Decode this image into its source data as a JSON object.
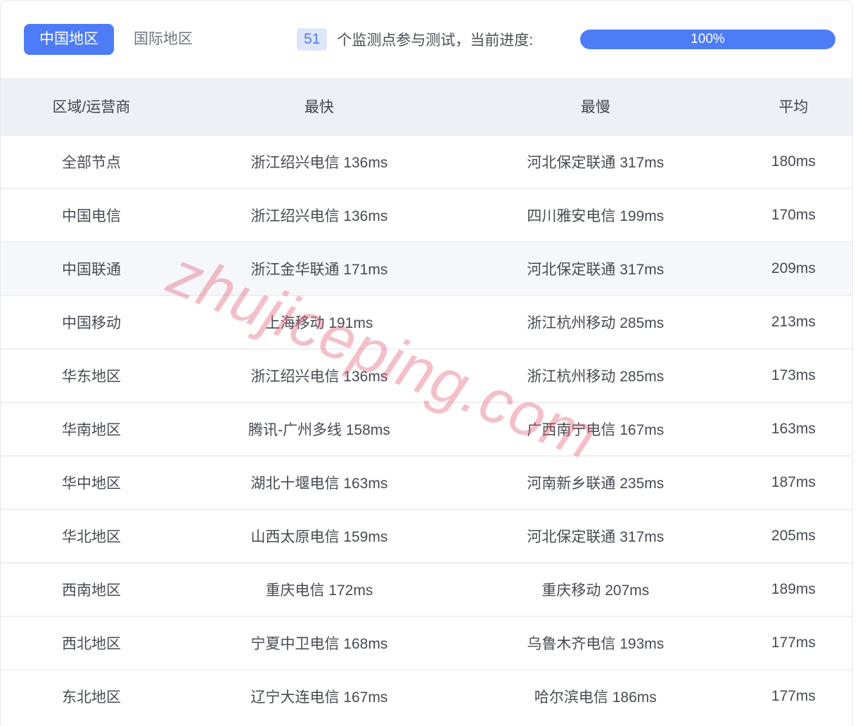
{
  "tabs": [
    {
      "label": "中国地区",
      "active": true
    },
    {
      "label": "国际地区",
      "active": false
    }
  ],
  "status": {
    "count": "51",
    "label": "个监测点参与测试，当前进度:",
    "progress": "100%"
  },
  "watermark": "zhujiceping.com",
  "table": {
    "headers": [
      "区域/运营商",
      "最快",
      "最慢",
      "平均"
    ],
    "rows": [
      {
        "region": "全部节点",
        "fastest": "浙江绍兴电信 136ms",
        "slowest": "河北保定联通 317ms",
        "avg": "180ms",
        "highlight": false
      },
      {
        "region": "中国电信",
        "fastest": "浙江绍兴电信 136ms",
        "slowest": "四川雅安电信 199ms",
        "avg": "170ms",
        "highlight": false
      },
      {
        "region": "中国联通",
        "fastest": "浙江金华联通 171ms",
        "slowest": "河北保定联通 317ms",
        "avg": "209ms",
        "highlight": true
      },
      {
        "region": "中国移动",
        "fastest": "上海移动 191ms",
        "slowest": "浙江杭州移动 285ms",
        "avg": "213ms",
        "highlight": false
      },
      {
        "region": "华东地区",
        "fastest": "浙江绍兴电信 136ms",
        "slowest": "浙江杭州移动 285ms",
        "avg": "173ms",
        "highlight": false
      },
      {
        "region": "华南地区",
        "fastest": "腾讯-广州多线 158ms",
        "slowest": "广西南宁电信 167ms",
        "avg": "163ms",
        "highlight": false
      },
      {
        "region": "华中地区",
        "fastest": "湖北十堰电信 163ms",
        "slowest": "河南新乡联通 235ms",
        "avg": "187ms",
        "highlight": false
      },
      {
        "region": "华北地区",
        "fastest": "山西太原电信 159ms",
        "slowest": "河北保定联通 317ms",
        "avg": "205ms",
        "highlight": false
      },
      {
        "region": "西南地区",
        "fastest": "重庆电信 172ms",
        "slowest": "重庆移动 207ms",
        "avg": "189ms",
        "highlight": false
      },
      {
        "region": "西北地区",
        "fastest": "宁夏中卫电信 168ms",
        "slowest": "乌鲁木齐电信 193ms",
        "avg": "177ms",
        "highlight": false
      },
      {
        "region": "东北地区",
        "fastest": "辽宁大连电信 167ms",
        "slowest": "哈尔滨电信 186ms",
        "avg": "177ms",
        "highlight": false
      }
    ]
  },
  "colors": {
    "accent_blue": "#4e7cf6",
    "badge_bg": "#dde6fb",
    "header_bg": "#edf0f4",
    "row_highlight": "#f6f7fa",
    "divider": "#edeff3",
    "watermark_pink": "rgba(226,88,114,0.38)"
  }
}
